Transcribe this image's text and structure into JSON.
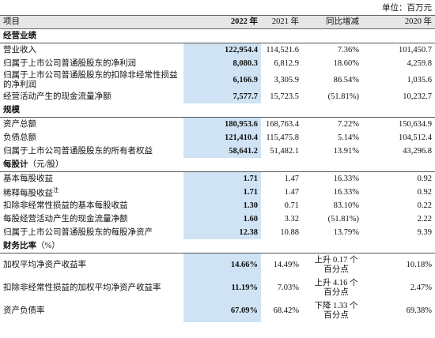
{
  "unit": "单位：百万元",
  "header": [
    "项目",
    "2022 年",
    "2021 年",
    "同比增减",
    "2020 年"
  ],
  "sections": [
    {
      "title": "经营业绩",
      "rows": [
        {
          "label": "营业收入",
          "values": [
            "122,954.4",
            "114,521.6",
            "7.36%",
            "101,450.7"
          ]
        },
        {
          "label": "归属于上市公司普通股股东的净利润",
          "values": [
            "8,080.3",
            "6,812.9",
            "18.60%",
            "4,259.8"
          ]
        },
        {
          "label": "归属于上市公司普通股股东的扣除非经常性损益的净利润",
          "values": [
            "6,166.9",
            "3,305.9",
            "86.54%",
            "1,035.6"
          ]
        },
        {
          "label": "经营活动产生的现金流量净额",
          "values": [
            "7,577.7",
            "15,723.5",
            "(51.81%)",
            "10,232.7"
          ]
        }
      ]
    },
    {
      "title": "规模",
      "rows": [
        {
          "label": "资产总额",
          "values": [
            "180,953.6",
            "168,763.4",
            "7.22%",
            "150,634.9"
          ]
        },
        {
          "label": "负债总额",
          "values": [
            "121,410.4",
            "115,475.8",
            "5.14%",
            "104,512.4"
          ]
        },
        {
          "label": "归属于上市公司普通股股东的所有者权益",
          "values": [
            "58,641.2",
            "51,482.1",
            "13.91%",
            "43,296.8"
          ]
        }
      ]
    },
    {
      "title": "每股计",
      "title_note": "（元/股）",
      "rows": [
        {
          "label": "基本每股收益",
          "values": [
            "1.71",
            "1.47",
            "16.33%",
            "0.92"
          ]
        },
        {
          "label": "稀释每股收益",
          "note": "注",
          "values": [
            "1.71",
            "1.47",
            "16.33%",
            "0.92"
          ]
        },
        {
          "label": "扣除非经常性损益的基本每股收益",
          "values": [
            "1.30",
            "0.71",
            "83.10%",
            "0.22"
          ]
        },
        {
          "label": "每股经营活动产生的现金流量净额",
          "values": [
            "1.60",
            "3.32",
            "(51.81%)",
            "2.22"
          ]
        },
        {
          "label": "归属于上市公司普通股股东的每股净资产",
          "values": [
            "12.38",
            "10.88",
            "13.79%",
            "9.39"
          ]
        }
      ]
    },
    {
      "title": "财务比率",
      "title_note": "（%）",
      "rows": [
        {
          "label": "加权平均净资产收益率",
          "values": [
            "14.66%",
            "14.49%",
            "上升 0.17 个百分点",
            "10.18%"
          ]
        },
        {
          "label": "扣除非经常性损益的加权平均净资产收益率",
          "values": [
            "11.19%",
            "7.03%",
            "上升 4.16 个百分点",
            "2.47%"
          ]
        },
        {
          "label": "资产负债率",
          "values": [
            "67.09%",
            "68.42%",
            "下降 1.33 个百分点",
            "69.38%"
          ]
        }
      ]
    }
  ]
}
